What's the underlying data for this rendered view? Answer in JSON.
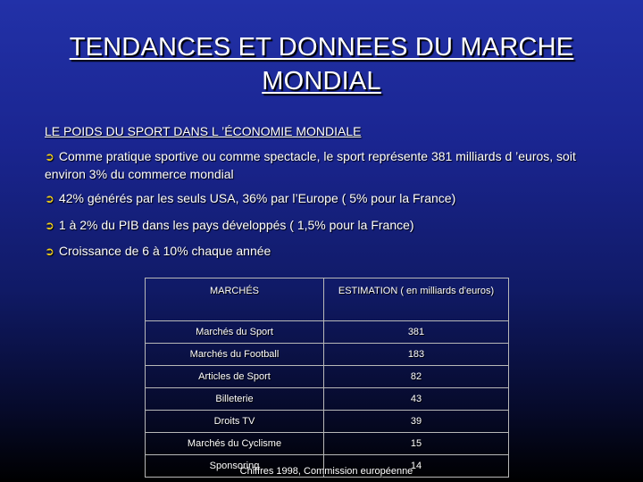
{
  "slide": {
    "title_line1": "TENDANCES ET DONNEES DU MARCHE",
    "title_line2": "MONDIAL",
    "section_heading": "LE POIDS DU SPORT DANS L ’ÉCONOMIE MONDIALE",
    "bullet_icon": "arrow-right-icon",
    "bullet_glyph": "➲",
    "bullets": [
      "Comme pratique sportive ou comme spectacle, le sport représente 381 milliards d ’euros, soit environ 3% du commerce mondial",
      "42% générés par les seuls USA, 36% par l’Europe ( 5% pour la France)",
      "1 à 2% du PIB dans les pays développés ( 1,5% pour la France)",
      "Croissance de 6 à 10% chaque année"
    ],
    "colors": {
      "background_top": "#2231a8",
      "background_bottom": "#000000",
      "text": "#ffffff",
      "bullet_icon": "#f4d31a"
    }
  },
  "table": {
    "headers": [
      "MARCHÉS",
      "ESTIMATION ( en milliards d'euros)"
    ],
    "rows": [
      [
        "Marchés du Sport",
        "381"
      ],
      [
        "Marchés du Football",
        "183"
      ],
      [
        "Articles de Sport",
        "82"
      ],
      [
        "Billeterie",
        "43"
      ],
      [
        "Droits TV",
        "39"
      ],
      [
        "Marchés du Cyclisme",
        "15"
      ],
      [
        "Sponsoring",
        "14"
      ]
    ]
  },
  "source_note": "Chiffres 1998, Commission européenne"
}
